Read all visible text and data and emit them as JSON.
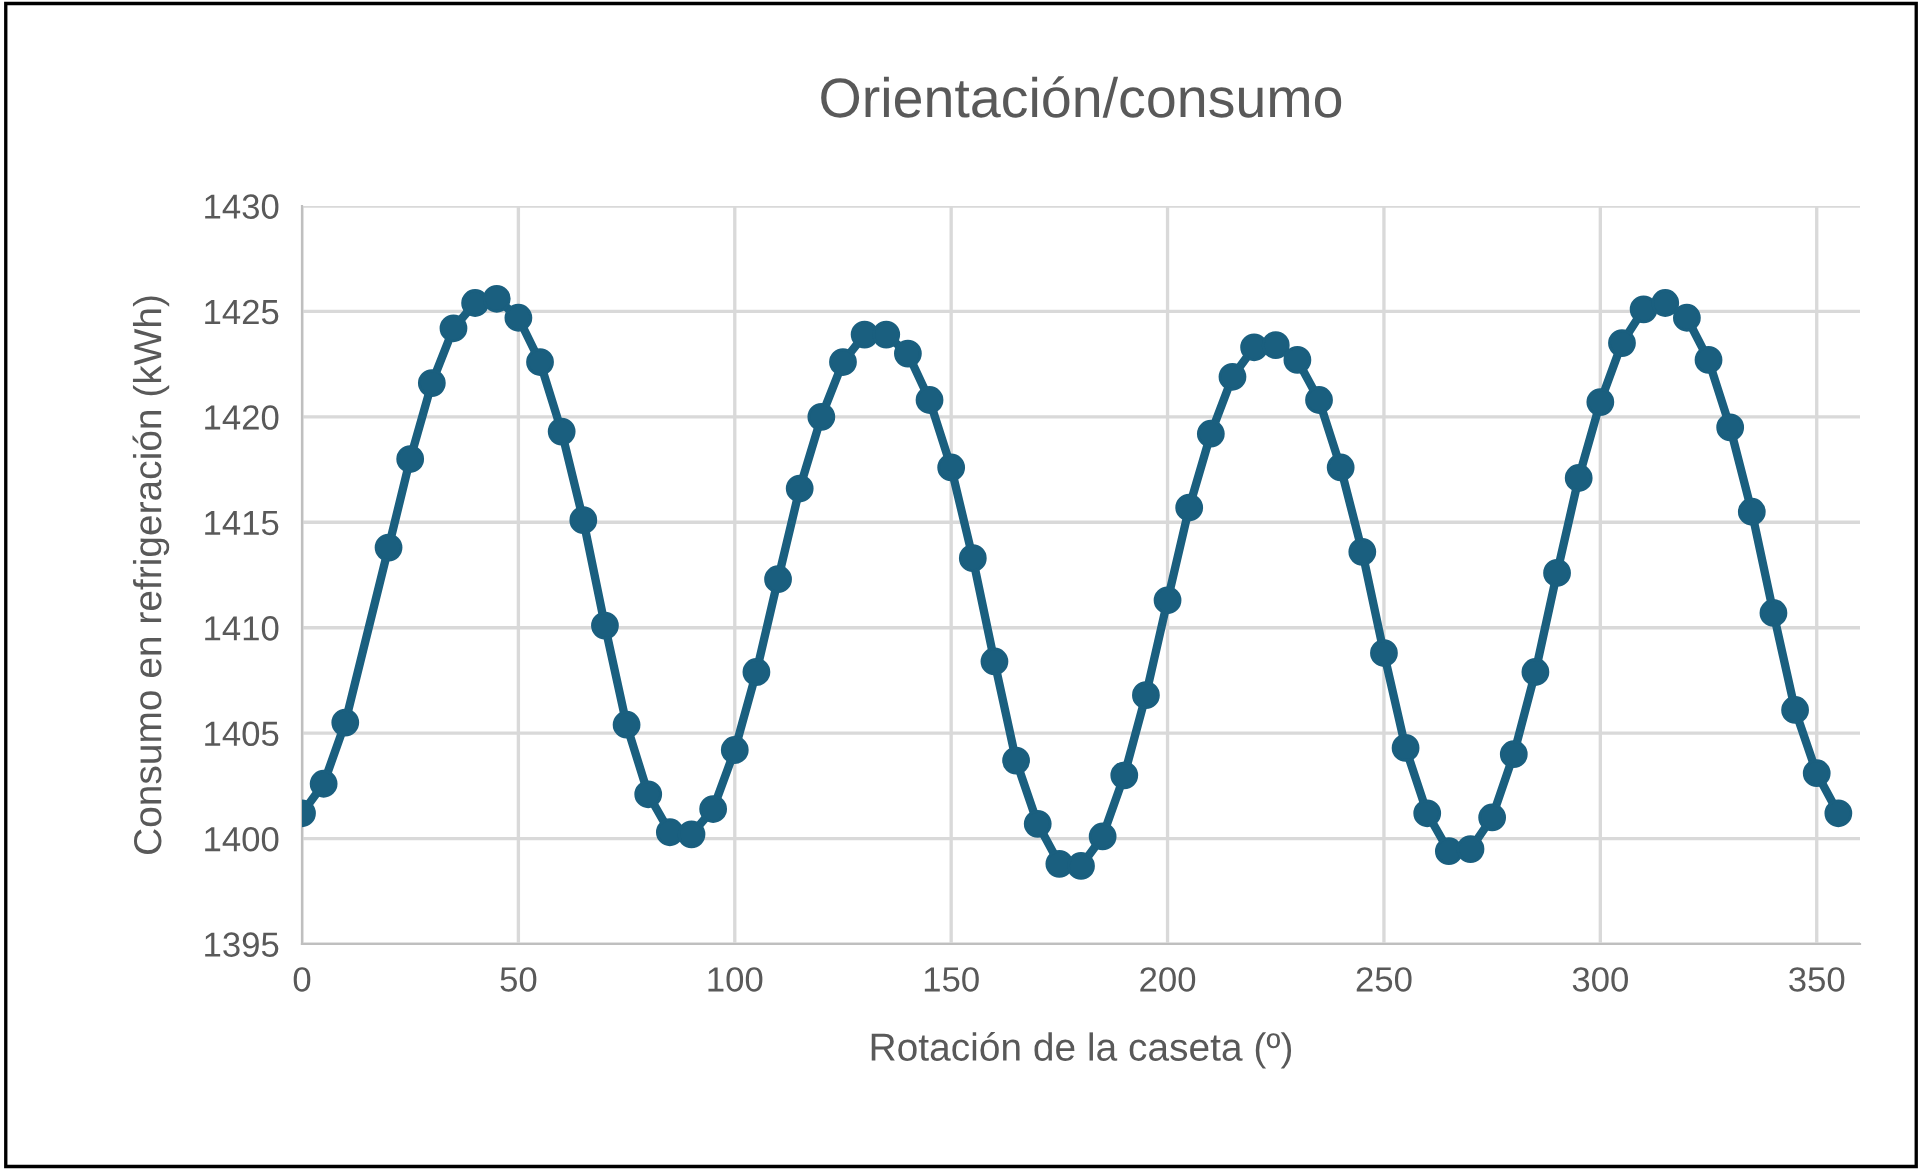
{
  "chart_data": {
    "type": "line",
    "title": "Orientación/consumo",
    "xlabel": "Rotación de la caseta (º)",
    "ylabel": "Consumo en refrigeración (kWh)",
    "x": [
      0,
      5,
      10,
      20,
      25,
      30,
      35,
      40,
      45,
      50,
      55,
      60,
      65,
      70,
      75,
      80,
      85,
      90,
      95,
      100,
      105,
      110,
      115,
      120,
      125,
      130,
      135,
      140,
      145,
      150,
      155,
      160,
      165,
      170,
      175,
      180,
      185,
      190,
      195,
      200,
      205,
      210,
      215,
      220,
      225,
      230,
      235,
      240,
      245,
      250,
      255,
      260,
      265,
      270,
      275,
      280,
      285,
      290,
      295,
      300,
      305,
      310,
      315,
      320,
      325,
      330,
      335,
      340,
      345,
      350,
      355
    ],
    "series": [
      {
        "color": "#1a5f7f",
        "values": [
          1401.2,
          1402.6,
          1405.5,
          1413.8,
          1418.0,
          1421.6,
          1424.2,
          1425.4,
          1425.6,
          1424.7,
          1422.6,
          1419.3,
          1415.1,
          1410.1,
          1405.4,
          1402.1,
          1400.3,
          1400.2,
          1401.4,
          1404.2,
          1407.9,
          1412.3,
          1416.6,
          1420.0,
          1422.6,
          1423.9,
          1423.9,
          1423.0,
          1420.8,
          1417.6,
          1413.3,
          1408.4,
          1403.7,
          1400.7,
          1398.8,
          1398.7,
          1400.1,
          1403.0,
          1406.8,
          1411.3,
          1415.7,
          1419.2,
          1421.9,
          1423.3,
          1423.4,
          1422.7,
          1420.8,
          1417.6,
          1413.6,
          1408.8,
          1404.3,
          1401.2,
          1399.4,
          1399.5,
          1401.0,
          1404.0,
          1407.9,
          1412.6,
          1417.1,
          1420.7,
          1423.5,
          1425.1,
          1425.4,
          1424.7,
          1422.7,
          1419.5,
          1415.5,
          1410.7,
          1406.1,
          1403.1,
          1401.2
        ]
      }
    ],
    "xlim": [
      0,
      360
    ],
    "xticks": [
      0,
      50,
      100,
      150,
      200,
      250,
      300,
      350
    ],
    "ylim": [
      1395,
      1430
    ],
    "yticks": [
      1395,
      1400,
      1405,
      1410,
      1415,
      1420,
      1425,
      1430
    ],
    "grid": true,
    "marker": "circle",
    "line_style": "solid"
  }
}
